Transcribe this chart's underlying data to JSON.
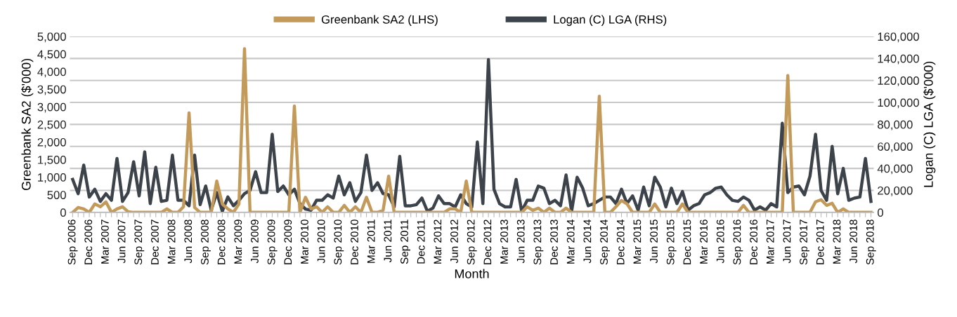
{
  "chart_data": {
    "type": "line",
    "xlabel": "Month",
    "ylabel": "Greenbank SA2 ($'000)",
    "y2label": "Logan (C) LGA ($'000)",
    "categories": [
      "Sep 2006",
      null,
      null,
      "Dec 2006",
      null,
      null,
      "Mar 2007",
      null,
      null,
      "Jun 2007",
      null,
      null,
      "Sep 2007",
      null,
      null,
      "Dec 2007",
      null,
      null,
      "Mar 2008",
      null,
      null,
      "Jun 2008",
      null,
      null,
      "Sep 2008",
      null,
      null,
      "Dec 2008",
      null,
      null,
      "Mar 2009",
      null,
      null,
      "Jun 2009",
      null,
      null,
      "Sep 2009",
      null,
      null,
      "Dec 2009",
      null,
      null,
      "Mar 2010",
      null,
      null,
      "Jun 2010",
      null,
      null,
      "Sep 2010",
      null,
      null,
      "Dec 2010",
      null,
      null,
      "Mar 2011",
      null,
      null,
      "Jun 2011",
      null,
      null,
      "Sep 2011",
      null,
      null,
      "Dec 2011",
      null,
      null,
      "Mar 2012",
      null,
      null,
      "Jun 2012",
      null,
      null,
      "Sep 2012",
      null,
      null,
      "Dec 2012",
      null,
      null,
      "Mar 2013",
      null,
      null,
      "Jun 2013",
      null,
      null,
      "Sep 2013",
      null,
      null,
      "Dec 2013",
      null,
      null,
      "Mar 2014",
      null,
      null,
      "Jun 2014",
      null,
      null,
      "Sep 2014",
      null,
      null,
      "Dec 2014",
      null,
      null,
      "Mar 2015",
      null,
      null,
      "Jun 2015",
      null,
      null,
      "Sep 2015",
      null,
      null,
      "Dec 2015",
      null,
      null,
      "Mar 2016",
      null,
      null,
      "Jun 2016",
      null,
      null,
      "Sep 2016",
      null,
      null,
      "Dec 2016",
      null,
      null,
      "Mar 2017",
      null,
      null,
      "Jun 2017",
      null,
      null,
      "Sep 2017",
      null,
      null,
      "Dec 2017",
      null,
      null,
      "Mar 2018",
      null,
      null,
      "Jun 2018",
      null,
      null,
      "Sep 2018"
    ],
    "series": [
      {
        "name": "Greenbank SA2 (LHS)",
        "color": "#c49a5a",
        "values": [
          0,
          140,
          100,
          0,
          240,
          160,
          300,
          0,
          100,
          160,
          20,
          0,
          0,
          0,
          0,
          0,
          0,
          100,
          0,
          0,
          160,
          2830,
          140,
          0,
          0,
          0,
          890,
          240,
          100,
          0,
          240,
          4650,
          0,
          0,
          0,
          0,
          0,
          0,
          0,
          0,
          3020,
          0,
          430,
          100,
          160,
          0,
          160,
          0,
          0,
          200,
          0,
          160,
          0,
          430,
          0,
          0,
          60,
          1030,
          0,
          0,
          0,
          0,
          0,
          0,
          0,
          0,
          0,
          0,
          100,
          100,
          0,
          890,
          0,
          0,
          0,
          0,
          0,
          0,
          0,
          0,
          0,
          0,
          160,
          60,
          120,
          0,
          120,
          0,
          0,
          120,
          0,
          0,
          0,
          0,
          0,
          3300,
          0,
          0,
          160,
          340,
          240,
          0,
          0,
          0,
          0,
          240,
          0,
          0,
          0,
          0,
          240,
          0,
          0,
          0,
          0,
          0,
          0,
          0,
          0,
          0,
          0,
          200,
          0,
          0,
          0,
          0,
          0,
          0,
          0,
          3890,
          0,
          0,
          0,
          0,
          300,
          360,
          200,
          260,
          0,
          100,
          0,
          0,
          0,
          0,
          0
        ]
      },
      {
        "name": "Logan (C) LGA (RHS)",
        "color": "#3d434b",
        "axis": "y2",
        "values": [
          30000,
          17000,
          43000,
          14000,
          21000,
          10000,
          17000,
          11000,
          49000,
          10000,
          18000,
          46000,
          15000,
          55000,
          8000,
          41000,
          10000,
          11000,
          52000,
          11000,
          11000,
          6000,
          52000,
          7000,
          24000,
          2000,
          18000,
          1000,
          14000,
          6000,
          11000,
          17000,
          20000,
          37000,
          18000,
          18000,
          71000,
          19000,
          24000,
          16000,
          21000,
          8000,
          3000,
          2000,
          11000,
          11000,
          16000,
          13000,
          33000,
          16000,
          27000,
          10000,
          18000,
          52000,
          20000,
          27000,
          17000,
          16000,
          5000,
          51000,
          6000,
          6000,
          7000,
          13000,
          1000,
          4000,
          15000,
          8000,
          8000,
          5000,
          16000,
          8000,
          5000,
          64000,
          8000,
          139000,
          21000,
          8000,
          5000,
          5000,
          30000,
          1000,
          11000,
          11000,
          24000,
          22000,
          8000,
          11000,
          6000,
          34000,
          1000,
          32000,
          22000,
          6000,
          8000,
          11000,
          14000,
          14000,
          8000,
          21000,
          8000,
          15000,
          2000,
          23000,
          6000,
          32000,
          23000,
          5000,
          22000,
          8000,
          19000,
          2000,
          6000,
          8000,
          16000,
          18000,
          22000,
          23000,
          16000,
          11000,
          10000,
          14000,
          11000,
          2000,
          5000,
          2000,
          8000,
          5000,
          81000,
          18000,
          23000,
          24000,
          16000,
          33000,
          71000,
          20000,
          11000,
          60000,
          17000,
          40000,
          11000,
          13000,
          14000,
          49000,
          10000
        ]
      }
    ],
    "ylim": [
      0,
      5000
    ],
    "yticks": [
      0,
      {
        "value": 500,
        "label": "500"
      },
      {
        "value": 1000,
        "label": "1,000"
      },
      {
        "value": 1500,
        "label": "1,500"
      },
      {
        "value": 2000,
        "label": "2,000"
      },
      {
        "value": 2500,
        "label": "2,500"
      },
      {
        "value": 3000,
        "label": "3,000"
      },
      {
        "value": 3500,
        "label": "3,500"
      },
      {
        "value": 4000,
        "label": "4,000"
      },
      {
        "value": 4500,
        "label": "4,500"
      },
      {
        "value": 5000,
        "label": "5,000"
      }
    ],
    "y2lim": [
      0,
      160000
    ],
    "y2ticks": [
      0,
      {
        "value": 20000,
        "label": "20,000"
      },
      {
        "value": 40000,
        "label": "40,000"
      },
      {
        "value": 60000,
        "label": "60,000"
      },
      {
        "value": 80000,
        "label": "80,000"
      },
      {
        "value": 100000,
        "label": "100,000"
      },
      {
        "value": 120000,
        "label": "120,000"
      },
      {
        "value": 140000,
        "label": "140,000"
      },
      {
        "value": 160000,
        "label": "160,000"
      }
    ],
    "grid": "y",
    "legend": "top",
    "line_style": "solid"
  }
}
